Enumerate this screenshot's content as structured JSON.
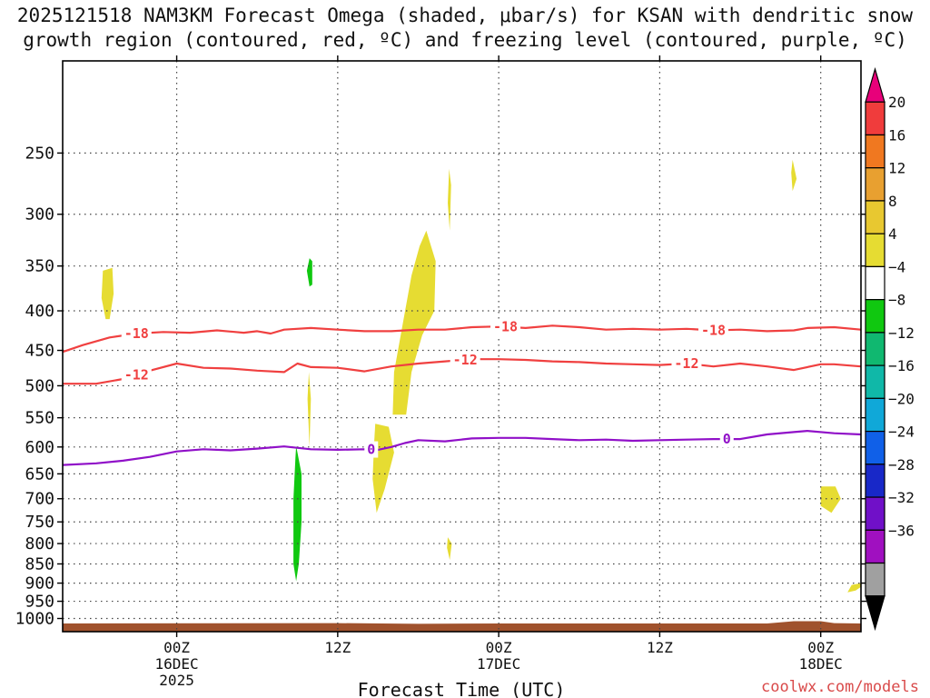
{
  "title_line1": "2025121518 NAM3KM Forecast Omega (shaded, μbar/s) for KSAN with dendritic snow",
  "title_line2": "growth region (contoured, red, ºC) and freezing level (contoured, purple, ºC)",
  "credit": "coolwx.com/models",
  "chart_data": {
    "type": "heatmap",
    "xlabel": "Forecast Time (UTC)",
    "x_units": "hours from 2025-12-15 18Z",
    "xlim": [
      -2.5,
      57
    ],
    "ylim": [
      1040,
      190
    ],
    "y_scale": "log-pressure (hPa)",
    "grid": true,
    "x_ticks": [
      {
        "x": 6,
        "lines": [
          "00Z",
          "16DEC",
          "2025"
        ]
      },
      {
        "x": 18,
        "lines": [
          "12Z"
        ]
      },
      {
        "x": 30,
        "lines": [
          "00Z",
          "17DEC"
        ]
      },
      {
        "x": 42,
        "lines": [
          "12Z"
        ]
      },
      {
        "x": 54,
        "lines": [
          "00Z",
          "18DEC"
        ]
      }
    ],
    "y_ticks": [
      250,
      300,
      350,
      400,
      450,
      500,
      550,
      600,
      650,
      700,
      750,
      800,
      850,
      900,
      950,
      1000
    ],
    "colorbar": {
      "levels": [
        20,
        16,
        12,
        8,
        4,
        -4,
        -8,
        -12,
        -16,
        -20,
        -24,
        -28,
        -32,
        -36
      ],
      "colors": [
        "#e8007a",
        "#f03c3c",
        "#f07820",
        "#e8a030",
        "#e8c830",
        "#e6dc32",
        "#ffffff",
        "#10c810",
        "#10b870",
        "#10b8a8",
        "#10a8d8",
        "#1060e8",
        "#1828c8",
        "#7010c8",
        "#a010c0",
        "#a0a0a0",
        "#000000"
      ]
    },
    "omega_shading": [
      {
        "color": "#e6dc32",
        "points": [
          [
            0.5,
            355
          ],
          [
            1.2,
            352
          ],
          [
            1.3,
            380
          ],
          [
            1.0,
            410
          ],
          [
            0.7,
            410
          ],
          [
            0.4,
            385
          ]
        ]
      },
      {
        "color": "#10c810",
        "points": [
          [
            15.9,
            342
          ],
          [
            16.1,
            345
          ],
          [
            16.1,
            370
          ],
          [
            15.9,
            372
          ],
          [
            15.7,
            355
          ]
        ]
      },
      {
        "color": "#e6dc32",
        "points": [
          [
            15.85,
            480
          ],
          [
            16.0,
            520
          ],
          [
            15.9,
            600
          ],
          [
            15.75,
            520
          ]
        ]
      },
      {
        "color": "#10c810",
        "points": [
          [
            14.9,
            598
          ],
          [
            15.3,
            650
          ],
          [
            15.3,
            750
          ],
          [
            15.1,
            850
          ],
          [
            14.9,
            895
          ],
          [
            14.7,
            850
          ],
          [
            14.7,
            700
          ],
          [
            14.85,
            620
          ]
        ]
      },
      {
        "color": "#e6dc32",
        "points": [
          [
            20.8,
            560
          ],
          [
            21.8,
            565
          ],
          [
            22.2,
            610
          ],
          [
            21.5,
            680
          ],
          [
            20.9,
            730
          ],
          [
            20.6,
            660
          ],
          [
            20.7,
            600
          ]
        ]
      },
      {
        "color": "#e6dc32",
        "points": [
          [
            24.6,
            315
          ],
          [
            25.3,
            345
          ],
          [
            25.2,
            400
          ],
          [
            24.3,
            430
          ],
          [
            23.5,
            480
          ],
          [
            23.1,
            545
          ],
          [
            22.1,
            545
          ],
          [
            22.2,
            480
          ],
          [
            22.8,
            420
          ],
          [
            23.5,
            360
          ],
          [
            24.1,
            330
          ]
        ]
      },
      {
        "color": "#e6dc32",
        "points": [
          [
            26.3,
            262
          ],
          [
            26.45,
            275
          ],
          [
            26.35,
            315
          ],
          [
            26.2,
            290
          ]
        ]
      },
      {
        "color": "#e6dc32",
        "points": [
          [
            26.2,
            785
          ],
          [
            26.5,
            800
          ],
          [
            26.35,
            840
          ],
          [
            26.15,
            810
          ]
        ]
      },
      {
        "color": "#e6dc32",
        "points": [
          [
            51.9,
            255
          ],
          [
            52.2,
            270
          ],
          [
            51.9,
            280
          ],
          [
            51.8,
            265
          ]
        ]
      },
      {
        "color": "#e6dc32",
        "points": [
          [
            54.0,
            675
          ],
          [
            55.1,
            675
          ],
          [
            55.5,
            700
          ],
          [
            54.8,
            730
          ],
          [
            54.0,
            715
          ]
        ]
      },
      {
        "color": "#e6dc32",
        "points": [
          [
            57,
            900
          ],
          [
            57,
            910
          ],
          [
            56.6,
            920
          ],
          [
            56.0,
            925
          ],
          [
            56.3,
            905
          ]
        ]
      }
    ],
    "ground": {
      "color": "#a0522d",
      "top_hPa": [
        [
          -2.5,
          1015
        ],
        [
          18,
          1014
        ],
        [
          24,
          1016
        ],
        [
          30,
          1015
        ],
        [
          50,
          1015
        ],
        [
          52,
          1008
        ],
        [
          54,
          1008
        ],
        [
          55,
          1014
        ],
        [
          57,
          1015
        ]
      ]
    },
    "contours": [
      {
        "label": "-18",
        "color": "#f04040",
        "points": [
          [
            -2.5,
            452
          ],
          [
            -1,
            443
          ],
          [
            1,
            433
          ],
          [
            3,
            428
          ],
          [
            5,
            426
          ],
          [
            7,
            427
          ],
          [
            9,
            424
          ],
          [
            11,
            427
          ],
          [
            12,
            425
          ],
          [
            13,
            428
          ],
          [
            14,
            423
          ],
          [
            16,
            421
          ],
          [
            18,
            423
          ],
          [
            20,
            425
          ],
          [
            22,
            425
          ],
          [
            24,
            423
          ],
          [
            26,
            423
          ],
          [
            28,
            420
          ],
          [
            30,
            419
          ],
          [
            32,
            421
          ],
          [
            34,
            418
          ],
          [
            36,
            420
          ],
          [
            38,
            423
          ],
          [
            40,
            422
          ],
          [
            42,
            423
          ],
          [
            44,
            422
          ],
          [
            46,
            424
          ],
          [
            48,
            423
          ],
          [
            50,
            425
          ],
          [
            52,
            424
          ],
          [
            53,
            421
          ],
          [
            55,
            420
          ],
          [
            57,
            423
          ]
        ],
        "label_at": [
          3,
          30.5,
          46
        ]
      },
      {
        "label": "-12",
        "color": "#f04040",
        "points": [
          [
            -2.5,
            497
          ],
          [
            0,
            497
          ],
          [
            2,
            490
          ],
          [
            4,
            478
          ],
          [
            6,
            468
          ],
          [
            8,
            474
          ],
          [
            10,
            475
          ],
          [
            12,
            478
          ],
          [
            14,
            480
          ],
          [
            15,
            468
          ],
          [
            16,
            473
          ],
          [
            18,
            474
          ],
          [
            20,
            479
          ],
          [
            22,
            472
          ],
          [
            24,
            468
          ],
          [
            26,
            465
          ],
          [
            28,
            462
          ],
          [
            30,
            462
          ],
          [
            32,
            463
          ],
          [
            34,
            465
          ],
          [
            36,
            466
          ],
          [
            38,
            468
          ],
          [
            40,
            469
          ],
          [
            42,
            470
          ],
          [
            44,
            468
          ],
          [
            46,
            472
          ],
          [
            48,
            468
          ],
          [
            50,
            472
          ],
          [
            52,
            477
          ],
          [
            54,
            469
          ],
          [
            55,
            469
          ],
          [
            57,
            472
          ]
        ],
        "label_at": [
          3,
          27.5,
          44
        ]
      },
      {
        "label": "0",
        "color": "#9010c8",
        "points": [
          [
            -2.5,
            633
          ],
          [
            0,
            630
          ],
          [
            2,
            625
          ],
          [
            4,
            618
          ],
          [
            6,
            608
          ],
          [
            8,
            604
          ],
          [
            10,
            606
          ],
          [
            12,
            603
          ],
          [
            14,
            599
          ],
          [
            16,
            604
          ],
          [
            18,
            605
          ],
          [
            20,
            604
          ],
          [
            21,
            605
          ],
          [
            22,
            600
          ],
          [
            23,
            593
          ],
          [
            24,
            588
          ],
          [
            26,
            590
          ],
          [
            28,
            585
          ],
          [
            30,
            584
          ],
          [
            32,
            584
          ],
          [
            34,
            586
          ],
          [
            36,
            588
          ],
          [
            38,
            587
          ],
          [
            40,
            589
          ],
          [
            42,
            588
          ],
          [
            44,
            587
          ],
          [
            46,
            586
          ],
          [
            48,
            586
          ],
          [
            50,
            578
          ],
          [
            52,
            574
          ],
          [
            53,
            572
          ],
          [
            55,
            576
          ],
          [
            57,
            578
          ]
        ],
        "label_at": [
          20.5,
          47
        ]
      }
    ]
  }
}
